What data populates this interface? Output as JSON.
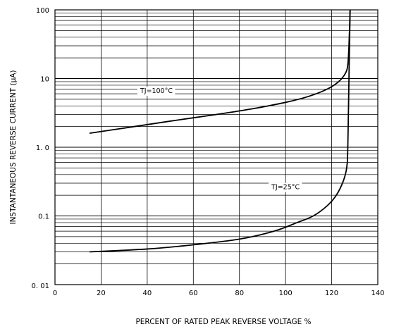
{
  "chart_data": {
    "type": "line",
    "title": "",
    "xlabel": "PERCENT OF RATED PEAK REVERSE VOLTAGE %",
    "ylabel": "INSTANTANEOUS REVERSE CURRENT  (μA)",
    "xlim": [
      0,
      140
    ],
    "ylim": [
      0.01,
      100
    ],
    "yscale": "log",
    "grid": true,
    "x_ticks": [
      0,
      20,
      40,
      60,
      80,
      100,
      120,
      140
    ],
    "x_tick_labels": [
      "0",
      "20",
      "40",
      "60",
      "80",
      "100",
      "120",
      "140"
    ],
    "y_ticks": [
      0.01,
      0.1,
      1,
      10,
      100
    ],
    "y_tick_labels": [
      "0. 01",
      "0.1",
      "1. 0",
      "10",
      "100"
    ],
    "series": [
      {
        "name": "TJ=100°C",
        "x": [
          15,
          30,
          50,
          70,
          85,
          100,
          110,
          118,
          123,
          126,
          127,
          127.5,
          128
        ],
        "y": [
          1.6,
          1.9,
          2.4,
          3.0,
          3.6,
          4.5,
          5.5,
          7.0,
          9.0,
          12,
          16,
          30,
          100
        ]
      },
      {
        "name": "TJ=25°C",
        "x": [
          15,
          40,
          60,
          80,
          95,
          105,
          112,
          118,
          122,
          125,
          126.5,
          127,
          127.5,
          128
        ],
        "y": [
          0.03,
          0.033,
          0.038,
          0.046,
          0.06,
          0.08,
          0.1,
          0.14,
          0.2,
          0.32,
          0.5,
          1.0,
          10,
          100
        ]
      }
    ],
    "annotations": [
      {
        "text": "TJ=100°C",
        "x": 44,
        "y": 6.5
      },
      {
        "text": "TJ=25°C",
        "x": 100,
        "y": 0.26
      }
    ]
  }
}
